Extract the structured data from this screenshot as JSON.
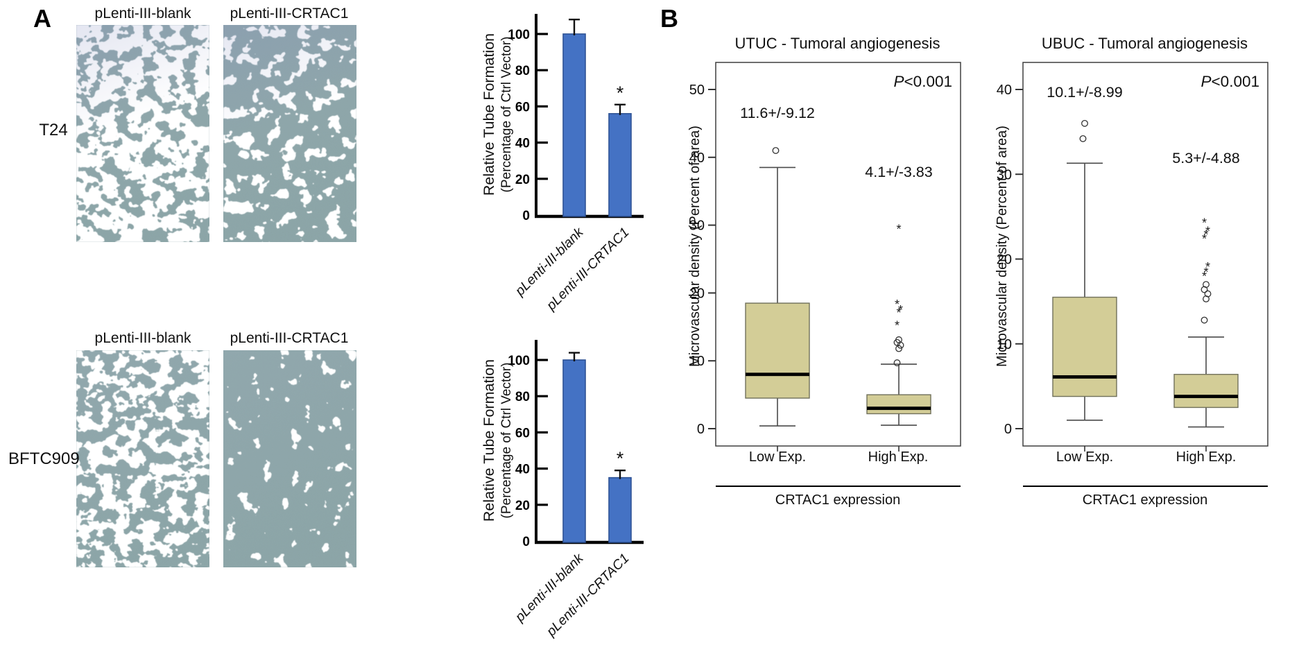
{
  "figure": {
    "panel_a": {
      "label": "A",
      "column_headers": [
        "pLenti-III-blank",
        "pLenti-III-CRTAC1"
      ],
      "row_labels": [
        "T24",
        "BFTC909"
      ]
    },
    "panel_b": {
      "label": "B"
    }
  },
  "chart_data": [
    {
      "id": "t24-tube-formation",
      "type": "bar",
      "cell_line": "T24",
      "categories": [
        "pLenti-III-blank",
        "pLenti-III-CRTAC1"
      ],
      "values": [
        100,
        56
      ],
      "errors": [
        8,
        5
      ],
      "significance": [
        "",
        "*"
      ],
      "ylabel_line1": "Relative Tube Formation",
      "ylabel_line2": "(Percentage of Ctrl Vector)",
      "yticks": [
        0,
        20,
        40,
        60,
        80,
        100
      ],
      "ylim": [
        0,
        112
      ]
    },
    {
      "id": "bftc909-tube-formation",
      "type": "bar",
      "cell_line": "BFTC909",
      "categories": [
        "pLenti-III-blank",
        "pLenti-III-CRTAC1"
      ],
      "values": [
        100,
        35
      ],
      "errors": [
        4,
        4
      ],
      "significance": [
        "",
        "*"
      ],
      "ylabel_line1": "Relative Tube Formation",
      "ylabel_line2": "(Percentage of Ctrl Vector)",
      "yticks": [
        0,
        20,
        40,
        60,
        80,
        100
      ],
      "ylim": [
        0,
        112
      ]
    },
    {
      "id": "utuc-microvascular-density",
      "type": "box",
      "title": "UTUC - Tumoral angiogenesis",
      "pvalue": "P<0.001",
      "ylabel": "Microvascular density (Percent of area)",
      "xlabel": "CRTAC1 expression",
      "yticks": [
        0,
        10,
        20,
        30,
        40,
        50
      ],
      "ylim": [
        -3,
        54
      ],
      "categories": [
        "Low Exp.",
        "High Exp."
      ],
      "series": [
        {
          "label": "Low Exp.",
          "annotation": "11.6+/-9.12",
          "q1": 4.5,
          "median": 8,
          "q3": 18.5,
          "whisker_low": 0.4,
          "whisker_high": 38.5,
          "outliers_circle": [
            41
          ],
          "outliers_star": []
        },
        {
          "label": "High Exp.",
          "annotation": "4.1+/-3.83",
          "q1": 2.2,
          "median": 3,
          "q3": 5,
          "whisker_low": 0.5,
          "whisker_high": 9.5,
          "outliers_circle": [
            9.7,
            11.8,
            12.3,
            12.7,
            13.1
          ],
          "outliers_star": [
            15.5,
            17.4,
            17.8,
            18.6,
            29.7
          ]
        }
      ]
    },
    {
      "id": "ubuc-microvascular-density",
      "type": "box",
      "title": "UBUC - Tumoral angiogenesis",
      "pvalue": "P<0.001",
      "ylabel": "Microvascular density (Percent of area)",
      "xlabel": "CRTAC1 expression",
      "yticks": [
        0,
        10,
        20,
        30,
        40
      ],
      "ylim": [
        -3,
        43
      ],
      "categories": [
        "Low Exp.",
        "High Exp."
      ],
      "series": [
        {
          "label": "Low Exp.",
          "annotation": "10.1+/-8.99",
          "q1": 3.8,
          "median": 6.1,
          "q3": 15.5,
          "whisker_low": 1.0,
          "whisker_high": 31.3,
          "outliers_circle": [
            34.2,
            36
          ],
          "outliers_star": []
        },
        {
          "label": "High Exp.",
          "annotation": "5.3+/-4.88",
          "q1": 2.5,
          "median": 3.8,
          "q3": 6.4,
          "whisker_low": 0.2,
          "whisker_high": 10.8,
          "outliers_circle": [
            12.8,
            15.3,
            15.9,
            16.4,
            17.0
          ],
          "outliers_star": [
            18.2,
            18.7,
            19.3,
            22.6,
            23.1,
            23.5,
            24.5
          ]
        }
      ]
    }
  ],
  "colors": {
    "bar_fill": "#4472c4",
    "bar_border": "#2e5395",
    "box_fill": "#d3cd97",
    "box_border": "#70705a",
    "micrograph_base": "#8ea6aa",
    "micrograph_web": "#eefaf6",
    "axis": "#000000",
    "frame": "#3f3f3f"
  }
}
